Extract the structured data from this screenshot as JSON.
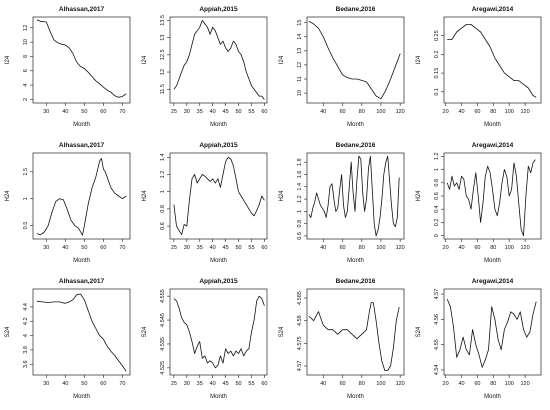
{
  "chart_data": [
    {
      "type": "line",
      "title": "Alhassan,2017",
      "xlabel": "Month",
      "ylabel": "I24",
      "xlim": [
        23,
        74
      ],
      "ylim": [
        1.5,
        13.5
      ],
      "xticks": [
        30,
        40,
        50,
        60,
        70
      ],
      "yticks": [
        2,
        4,
        6,
        8,
        10,
        12
      ],
      "x": [
        25,
        27,
        30,
        32,
        34,
        36,
        38,
        40,
        42,
        44,
        46,
        48,
        50,
        52,
        54,
        56,
        58,
        60,
        62,
        64,
        66,
        68,
        70,
        72
      ],
      "y": [
        13.1,
        12.9,
        12.8,
        11.5,
        10.3,
        9.9,
        9.7,
        9.6,
        9.2,
        8.4,
        7.2,
        6.6,
        6.3,
        5.8,
        5.2,
        4.6,
        4.2,
        3.7,
        3.3,
        3.0,
        2.5,
        2.3,
        2.4,
        2.8
      ]
    },
    {
      "type": "line",
      "title": "Appiah,2015",
      "xlabel": "Month",
      "ylabel": "I24",
      "xlim": [
        23.5,
        61
      ],
      "ylim": [
        11.1,
        13.6
      ],
      "xticks": [
        25,
        30,
        35,
        40,
        45,
        50,
        55,
        60
      ],
      "yticks": [
        11.5,
        12.0,
        12.5,
        13.0,
        13.5
      ],
      "x": [
        25,
        26,
        27,
        28,
        29,
        30,
        31,
        32,
        33,
        34,
        35,
        36,
        37,
        38,
        39,
        40,
        41,
        42,
        43,
        44,
        45,
        46,
        47,
        48,
        49,
        50,
        51,
        52,
        53,
        54,
        55,
        56,
        57,
        58,
        59,
        60
      ],
      "y": [
        11.5,
        11.6,
        11.8,
        12.0,
        12.2,
        12.3,
        12.5,
        12.8,
        13.1,
        13.2,
        13.3,
        13.5,
        13.4,
        13.3,
        13.1,
        13.3,
        13.2,
        13.0,
        12.8,
        12.9,
        12.7,
        12.6,
        12.7,
        12.9,
        12.8,
        12.6,
        12.5,
        12.3,
        12.0,
        11.8,
        11.6,
        11.5,
        11.4,
        11.3,
        11.3,
        11.2
      ]
    },
    {
      "type": "line",
      "title": "Bedane,2016",
      "xlabel": "Month",
      "ylabel": "I24",
      "xlim": [
        23,
        124
      ],
      "ylim": [
        9.3,
        15.4
      ],
      "xticks": [
        40,
        60,
        80,
        100,
        120
      ],
      "yticks": [
        10,
        11,
        12,
        13,
        14,
        15
      ],
      "x": [
        25,
        30,
        35,
        40,
        45,
        50,
        55,
        60,
        65,
        70,
        75,
        80,
        85,
        90,
        95,
        100,
        105,
        110,
        115,
        120
      ],
      "y": [
        15.1,
        14.9,
        14.6,
        14.0,
        13.2,
        12.5,
        11.9,
        11.3,
        11.1,
        11.0,
        11.0,
        10.9,
        10.8,
        10.3,
        9.8,
        9.6,
        10.2,
        11.0,
        11.9,
        12.8
      ]
    },
    {
      "type": "line",
      "title": "Aregawi,2014",
      "xlabel": "Month",
      "ylabel": "I24",
      "xlim": [
        18,
        140
      ],
      "ylim": [
        0.07,
        0.3
      ],
      "xticks": [
        20,
        40,
        60,
        80,
        100,
        120
      ],
      "yticks": [
        0.1,
        0.15,
        0.2,
        0.25
      ],
      "x": [
        22,
        28,
        34,
        40,
        46,
        52,
        58,
        64,
        70,
        76,
        82,
        88,
        94,
        100,
        106,
        112,
        118,
        124,
        130,
        134
      ],
      "y": [
        0.24,
        0.24,
        0.26,
        0.27,
        0.28,
        0.28,
        0.27,
        0.26,
        0.24,
        0.22,
        0.19,
        0.17,
        0.15,
        0.14,
        0.13,
        0.13,
        0.12,
        0.11,
        0.09,
        0.085
      ]
    },
    {
      "type": "line",
      "title": "Alhassan,2017",
      "xlabel": "Month",
      "ylabel": "H24",
      "xlim": [
        23,
        74
      ],
      "ylim": [
        0.25,
        1.85
      ],
      "xticks": [
        30,
        40,
        50,
        60,
        70
      ],
      "yticks": [
        0.5,
        1.0,
        1.5
      ],
      "x": [
        25,
        27,
        29,
        31,
        33,
        35,
        37,
        39,
        41,
        43,
        45,
        47,
        49,
        50,
        52,
        54,
        56,
        58,
        59,
        60,
        61,
        62,
        63,
        64,
        66,
        68,
        70,
        72
      ],
      "y": [
        0.35,
        0.33,
        0.38,
        0.5,
        0.75,
        0.95,
        1.0,
        0.98,
        0.8,
        0.6,
        0.5,
        0.45,
        0.32,
        0.5,
        0.9,
        1.2,
        1.4,
        1.7,
        1.75,
        1.55,
        1.5,
        1.4,
        1.3,
        1.2,
        1.1,
        1.05,
        1.0,
        1.05
      ]
    },
    {
      "type": "line",
      "title": "Appiah,2015",
      "xlabel": "Month",
      "ylabel": "H24",
      "xlim": [
        23.5,
        61
      ],
      "ylim": [
        0.45,
        1.45
      ],
      "xticks": [
        25,
        30,
        35,
        40,
        45,
        50,
        55,
        60
      ],
      "yticks": [
        0.6,
        0.8,
        1.0,
        1.2,
        1.4
      ],
      "x": [
        25,
        26,
        27,
        28,
        29,
        30,
        31,
        32,
        33,
        34,
        35,
        36,
        37,
        38,
        39,
        40,
        41,
        42,
        43,
        44,
        45,
        46,
        47,
        48,
        49,
        50,
        51,
        52,
        53,
        54,
        55,
        56,
        57,
        58,
        59,
        60
      ],
      "y": [
        0.85,
        0.6,
        0.55,
        0.5,
        0.62,
        0.6,
        0.9,
        1.15,
        1.2,
        1.1,
        1.15,
        1.2,
        1.18,
        1.15,
        1.12,
        1.15,
        1.1,
        1.15,
        1.05,
        1.2,
        1.35,
        1.4,
        1.38,
        1.3,
        1.15,
        1.0,
        0.95,
        0.9,
        0.85,
        0.8,
        0.75,
        0.72,
        0.78,
        0.85,
        0.95,
        0.9
      ]
    },
    {
      "type": "line",
      "title": "Bedane,2016",
      "xlabel": "Month",
      "ylabel": "H24",
      "xlim": [
        23,
        124
      ],
      "ylim": [
        0.55,
        1.95
      ],
      "xticks": [
        40,
        60,
        80,
        100,
        120
      ],
      "yticks": [
        0.6,
        0.8,
        1.0,
        1.2,
        1.4,
        1.6,
        1.8
      ],
      "x": [
        25,
        27,
        29,
        31,
        33,
        35,
        37,
        39,
        41,
        43,
        45,
        47,
        49,
        51,
        53,
        55,
        57,
        59,
        61,
        63,
        65,
        67,
        69,
        71,
        73,
        75,
        77,
        79,
        81,
        83,
        85,
        87,
        89,
        91,
        93,
        95,
        97,
        99,
        101,
        103,
        105,
        107,
        109,
        111,
        113,
        115,
        117,
        119
      ],
      "y": [
        0.95,
        0.9,
        1.05,
        1.15,
        1.3,
        1.2,
        1.1,
        1.05,
        1.0,
        0.9,
        1.1,
        1.4,
        1.45,
        1.2,
        1.0,
        1.05,
        1.35,
        1.6,
        1.1,
        0.9,
        1.0,
        1.4,
        1.8,
        1.3,
        1.0,
        1.5,
        1.9,
        1.85,
        1.3,
        1.0,
        1.2,
        1.7,
        1.9,
        1.35,
        0.8,
        0.6,
        0.7,
        0.9,
        1.2,
        1.6,
        1.8,
        1.9,
        1.5,
        1.1,
        0.8,
        0.75,
        0.9,
        1.55
      ]
    },
    {
      "type": "line",
      "title": "Aregawi,2014",
      "xlabel": "Month",
      "ylabel": "H24",
      "xlim": [
        18,
        140
      ],
      "ylim": [
        -0.05,
        1.25
      ],
      "xticks": [
        20,
        40,
        60,
        80,
        100,
        120
      ],
      "yticks": [
        0.0,
        0.2,
        0.4,
        0.6,
        0.8,
        1.0,
        1.2
      ],
      "x": [
        22,
        25,
        28,
        31,
        34,
        37,
        40,
        43,
        46,
        49,
        52,
        55,
        58,
        61,
        64,
        67,
        70,
        73,
        76,
        79,
        82,
        85,
        88,
        91,
        94,
        97,
        100,
        103,
        106,
        109,
        112,
        115,
        118,
        121,
        124,
        127,
        130,
        133
      ],
      "y": [
        0.8,
        0.7,
        0.9,
        0.75,
        0.8,
        0.7,
        0.9,
        0.85,
        0.6,
        0.55,
        0.4,
        0.7,
        0.95,
        0.6,
        0.2,
        0.5,
        0.9,
        1.05,
        0.95,
        0.7,
        0.4,
        0.3,
        0.5,
        0.8,
        1.0,
        0.9,
        0.6,
        0.7,
        1.1,
        0.9,
        0.5,
        0.1,
        0.0,
        0.6,
        1.05,
        0.95,
        1.1,
        1.15
      ]
    },
    {
      "type": "line",
      "title": "Alhassan,2017",
      "xlabel": "Month",
      "ylabel": "S24",
      "xlim": [
        23,
        74
      ],
      "ylim": [
        3.45,
        4.65
      ],
      "xticks": [
        30,
        40,
        50,
        60,
        70
      ],
      "yticks": [
        3.6,
        3.8,
        4.0,
        4.2,
        4.4
      ],
      "x": [
        25,
        28,
        31,
        34,
        37,
        40,
        42,
        44,
        46,
        48,
        50,
        52,
        54,
        56,
        58,
        60,
        62,
        64,
        66,
        68,
        70,
        72
      ],
      "y": [
        4.48,
        4.47,
        4.46,
        4.47,
        4.47,
        4.45,
        4.47,
        4.5,
        4.57,
        4.58,
        4.5,
        4.35,
        4.2,
        4.1,
        4.0,
        3.95,
        3.85,
        3.78,
        3.72,
        3.65,
        3.58,
        3.5
      ]
    },
    {
      "type": "line",
      "title": "Appiah,2015",
      "xlabel": "Month",
      "ylabel": "S24",
      "xlim": [
        23.5,
        61
      ],
      "ylim": [
        4.522,
        4.558
      ],
      "xticks": [
        25,
        30,
        35,
        40,
        45,
        50,
        55,
        60
      ],
      "yticks": [
        4.525,
        4.535,
        4.545,
        4.555
      ],
      "x": [
        25,
        26,
        27,
        28,
        29,
        30,
        31,
        32,
        33,
        34,
        35,
        36,
        37,
        38,
        39,
        40,
        41,
        42,
        43,
        44,
        45,
        46,
        47,
        48,
        49,
        50,
        51,
        52,
        53,
        54,
        55,
        56,
        57,
        58,
        59,
        60
      ],
      "y": [
        4.554,
        4.553,
        4.55,
        4.546,
        4.544,
        4.543,
        4.54,
        4.536,
        4.531,
        4.534,
        4.536,
        4.529,
        4.53,
        4.527,
        4.528,
        4.527,
        4.525,
        4.526,
        4.53,
        4.527,
        4.533,
        4.531,
        4.532,
        4.53,
        4.532,
        4.531,
        4.533,
        4.53,
        4.532,
        4.533,
        4.54,
        4.545,
        4.553,
        4.555,
        4.554,
        4.551
      ]
    },
    {
      "type": "line",
      "title": "Bedane,2016",
      "xlabel": "Month",
      "ylabel": "S24",
      "xlim": [
        23,
        124
      ],
      "ylim": [
        4.568,
        4.587
      ],
      "xticks": [
        40,
        60,
        80,
        100,
        120
      ],
      "yticks": [
        4.57,
        4.575,
        4.58,
        4.585
      ],
      "x": [
        25,
        30,
        35,
        40,
        45,
        50,
        55,
        60,
        65,
        70,
        75,
        80,
        85,
        88,
        90,
        92,
        95,
        98,
        101,
        104,
        107,
        110,
        113,
        116,
        119
      ],
      "y": [
        4.581,
        4.58,
        4.582,
        4.579,
        4.578,
        4.578,
        4.577,
        4.578,
        4.578,
        4.577,
        4.576,
        4.577,
        4.578,
        4.582,
        4.584,
        4.584,
        4.58,
        4.575,
        4.571,
        4.569,
        4.569,
        4.57,
        4.574,
        4.58,
        4.583
      ]
    },
    {
      "type": "line",
      "title": "Aregawi,2014",
      "xlabel": "Month",
      "ylabel": "S24",
      "xlim": [
        18,
        140
      ],
      "ylim": [
        4.538,
        4.572
      ],
      "xticks": [
        20,
        40,
        60,
        80,
        100,
        120
      ],
      "yticks": [
        4.54,
        4.55,
        4.56,
        4.57
      ],
      "x": [
        22,
        26,
        30,
        34,
        38,
        42,
        46,
        50,
        54,
        58,
        62,
        66,
        70,
        74,
        78,
        82,
        86,
        90,
        94,
        98,
        102,
        106,
        110,
        114,
        118,
        122,
        126,
        130,
        134
      ],
      "y": [
        4.568,
        4.565,
        4.557,
        4.545,
        4.548,
        4.553,
        4.548,
        4.546,
        4.556,
        4.55,
        4.546,
        4.541,
        4.544,
        4.548,
        4.565,
        4.56,
        4.552,
        4.548,
        4.556,
        4.559,
        4.563,
        4.562,
        4.56,
        4.563,
        4.556,
        4.553,
        4.555,
        4.562,
        4.567
      ]
    }
  ]
}
